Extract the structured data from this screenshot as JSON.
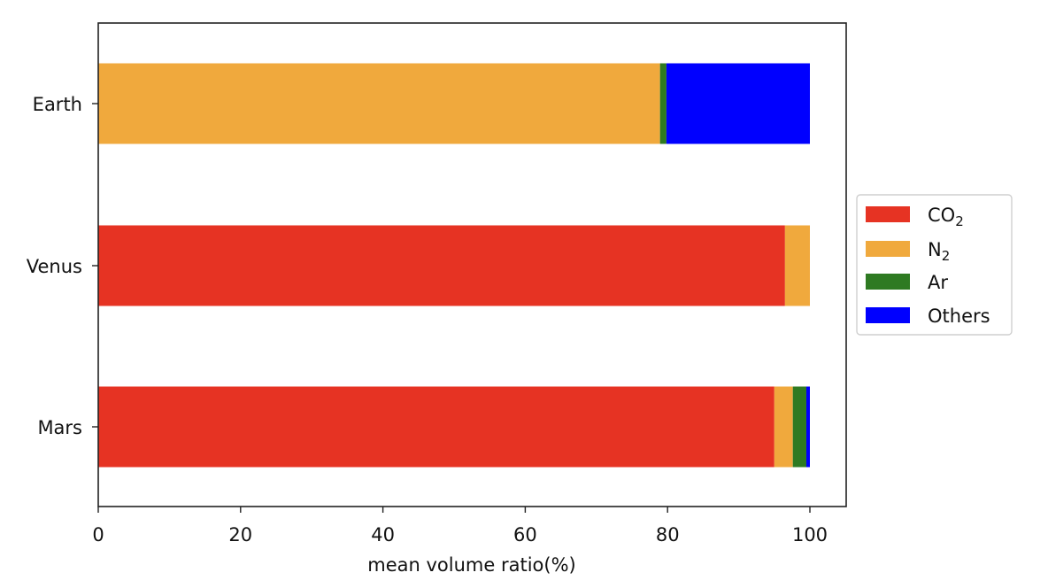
{
  "chart_data": {
    "type": "bar",
    "orientation": "horizontal",
    "stacked": true,
    "categories": [
      "Earth",
      "Venus",
      "Mars"
    ],
    "series": [
      {
        "name": "CO",
        "subscript": "2",
        "color": "#e63323",
        "values": [
          0.04,
          96.5,
          95.0
        ]
      },
      {
        "name": "N",
        "subscript": "2",
        "color": "#f0a93d",
        "values": [
          78.9,
          3.5,
          2.6
        ]
      },
      {
        "name": "Ar",
        "color": "#2e7a22",
        "values": [
          0.9,
          0,
          1.9
        ]
      },
      {
        "name": "Others",
        "color": "#0000ff",
        "values": [
          20.16,
          0,
          0.5
        ]
      }
    ],
    "xlabel": "mean volume ratio(%)",
    "ylabel": "",
    "title": "",
    "xlim": [
      0,
      105
    ],
    "xticks": [
      0,
      20,
      40,
      60,
      80,
      100
    ],
    "grid": false,
    "legend_position": "right-outside"
  }
}
